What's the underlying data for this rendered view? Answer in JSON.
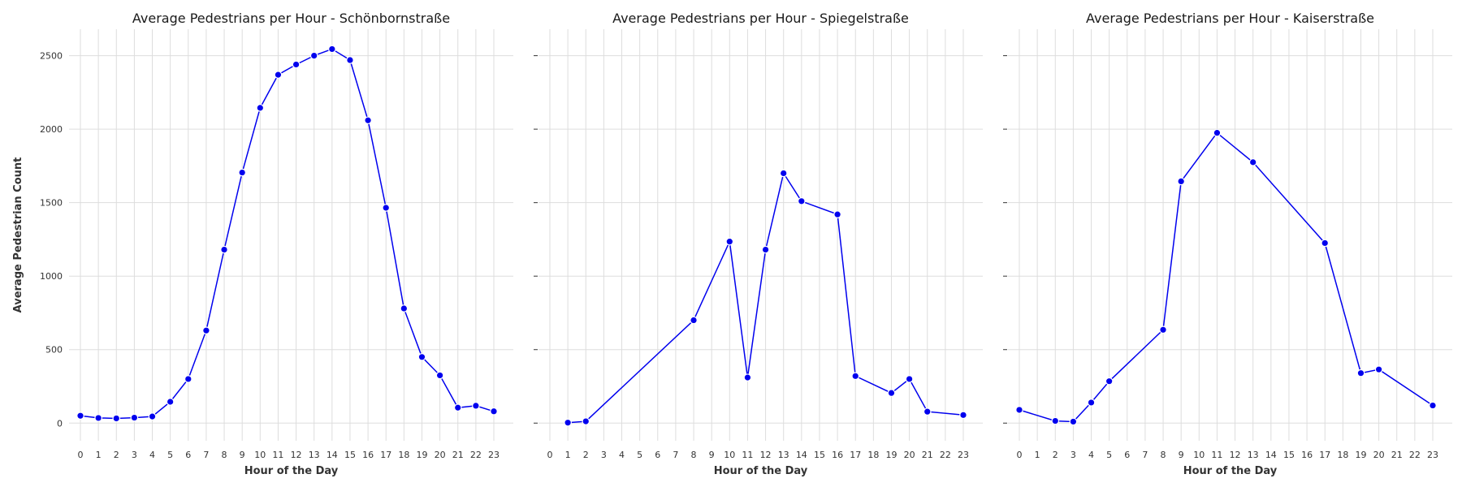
{
  "chart_data": [
    {
      "type": "line",
      "title": "Average Pedestrians per Hour - Schönbornstraße",
      "xlabel": "Hour of the Day",
      "ylabel": "Average Pedestrian Count",
      "x": [
        0,
        1,
        2,
        3,
        4,
        5,
        6,
        7,
        8,
        9,
        10,
        11,
        12,
        13,
        14,
        15,
        16,
        17,
        18,
        19,
        20,
        21,
        22,
        23
      ],
      "y": [
        50,
        35,
        32,
        37,
        45,
        145,
        300,
        630,
        1180,
        1705,
        2145,
        2370,
        2440,
        2500,
        2545,
        2470,
        2060,
        1465,
        780,
        450,
        325,
        105,
        118,
        80
      ],
      "ylim": [
        -120,
        2680
      ],
      "yticks": [
        0,
        500,
        1000,
        1500,
        2000,
        2500
      ],
      "xticks": [
        0,
        1,
        2,
        3,
        4,
        5,
        6,
        7,
        8,
        9,
        10,
        11,
        12,
        13,
        14,
        15,
        16,
        17,
        18,
        19,
        20,
        21,
        22,
        23
      ],
      "grid": true,
      "color": "#0000ee"
    },
    {
      "type": "line",
      "title": "Average Pedestrians per Hour - Spiegelstraße",
      "xlabel": "Hour of the Day",
      "ylabel": "",
      "x": [
        1,
        2,
        8,
        10,
        11,
        12,
        13,
        14,
        16,
        17,
        19,
        20,
        21,
        23
      ],
      "y": [
        3,
        12,
        700,
        1235,
        310,
        1180,
        1700,
        1510,
        1420,
        320,
        205,
        300,
        78,
        55
      ],
      "ylim": [
        -120,
        2680
      ],
      "yticks": [
        0,
        500,
        1000,
        1500,
        2000,
        2500
      ],
      "xticks": [
        0,
        1,
        2,
        3,
        4,
        5,
        6,
        7,
        8,
        9,
        10,
        11,
        12,
        13,
        14,
        15,
        16,
        17,
        18,
        19,
        20,
        21,
        22,
        23
      ],
      "grid": true,
      "color": "#0000ee"
    },
    {
      "type": "line",
      "title": "Average Pedestrians per Hour - Kaiserstraße",
      "xlabel": "Hour of the Day",
      "ylabel": "",
      "x": [
        0,
        2,
        3,
        4,
        5,
        8,
        9,
        11,
        13,
        17,
        19,
        20,
        23
      ],
      "y": [
        90,
        15,
        10,
        140,
        285,
        635,
        1645,
        1975,
        1775,
        1225,
        340,
        365,
        120
      ],
      "ylim": [
        -120,
        2680
      ],
      "yticks": [
        0,
        500,
        1000,
        1500,
        2000,
        2500
      ],
      "xticks": [
        0,
        1,
        2,
        3,
        4,
        5,
        6,
        7,
        8,
        9,
        10,
        11,
        12,
        13,
        14,
        15,
        16,
        17,
        18,
        19,
        20,
        21,
        22,
        23
      ],
      "grid": true,
      "color": "#0000ee"
    }
  ]
}
